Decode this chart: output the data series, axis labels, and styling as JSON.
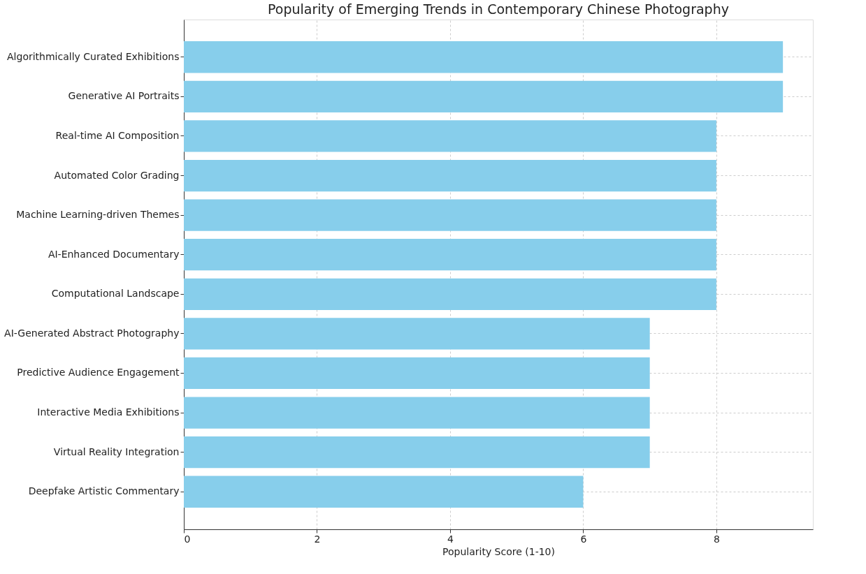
{
  "chart_data": {
    "type": "bar",
    "orientation": "horizontal",
    "title": "Popularity of Emerging Trends in Contemporary Chinese Photography",
    "xlabel": "Popularity Score (1-10)",
    "categories": [
      "Algorithmically Curated Exhibitions",
      "Generative AI Portraits",
      "Real-time AI Composition",
      "Automated Color Grading",
      "Machine Learning-driven Themes",
      "AI-Enhanced Documentary",
      "Computational Landscape",
      "AI-Generated Abstract Photography",
      "Predictive Audience Engagement",
      "Interactive Media Exhibitions",
      "Virtual Reality Integration",
      "Deepfake Artistic Commentary"
    ],
    "values": [
      9,
      9,
      8,
      8,
      8,
      8,
      8,
      7,
      7,
      7,
      7,
      6
    ],
    "color": "#87ceeb",
    "xlim": [
      0,
      9.45
    ],
    "xticks": [
      0,
      2,
      4,
      6,
      8
    ],
    "grid": true
  }
}
